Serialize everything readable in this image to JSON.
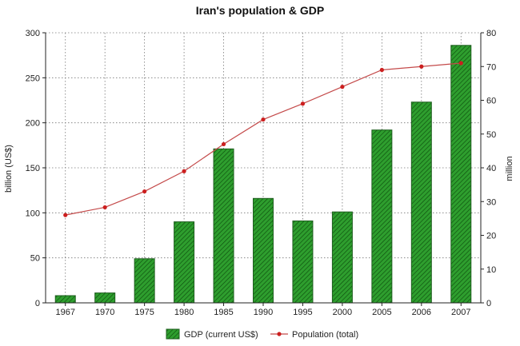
{
  "chart_data": {
    "type": "bar",
    "title": "Iran's population & GDP",
    "categories": [
      "1967",
      "1970",
      "1975",
      "1980",
      "1985",
      "1990",
      "1995",
      "2000",
      "2005",
      "2006",
      "2007"
    ],
    "series": [
      {
        "name": "GDP (current US$)",
        "type": "bar",
        "axis": "left",
        "values": [
          8,
          11,
          49,
          90,
          171,
          116,
          91,
          101,
          192,
          223,
          286
        ]
      },
      {
        "name": "Population (total)",
        "type": "line",
        "axis": "right",
        "values": [
          26,
          28.3,
          33,
          39,
          47,
          54.3,
          59,
          64,
          69,
          70,
          71
        ]
      }
    ],
    "ylabel": "billion (US$)",
    "ylabel_right": "million",
    "ylim": [
      0,
      300
    ],
    "ylim_right": [
      0,
      80
    ],
    "yticks": [
      "0",
      "50",
      "100",
      "150",
      "200",
      "250",
      "300"
    ],
    "yticks_right": [
      "0",
      "10",
      "20",
      "30",
      "40",
      "50",
      "60",
      "70",
      "80"
    ],
    "grid": true,
    "legend_position": "bottom",
    "colors": {
      "bar_fill": "#2e9e2e",
      "bar_stroke": "#1f5f1f",
      "bar_hatch": "#0d4d0d",
      "line": "#c44a4a",
      "marker": "#cc1f1f",
      "grid": "#777777"
    }
  }
}
